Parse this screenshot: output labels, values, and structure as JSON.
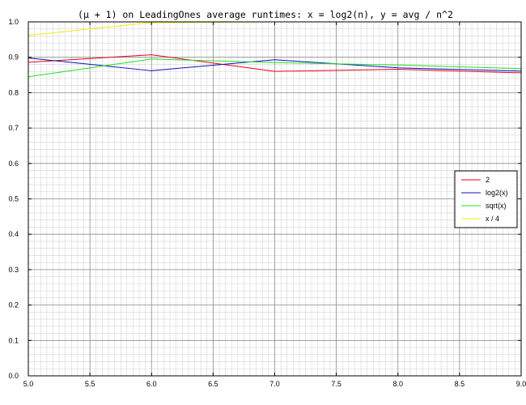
{
  "chart_data": {
    "type": "line",
    "title": "(μ + 1) on LeadingOnes average runtimes: x = log2(n), y = avg / n^2",
    "xlabel": "",
    "ylabel": "",
    "xlim": [
      5.0,
      9.0
    ],
    "ylim": [
      0.0,
      1.0
    ],
    "xticks": [
      "5.0",
      "5.5",
      "6.0",
      "6.5",
      "7.0",
      "7.5",
      "8.0",
      "8.5",
      "9.0"
    ],
    "yticks": [
      "0.0",
      "0.1",
      "0.2",
      "0.3",
      "0.4",
      "0.5",
      "0.6",
      "0.7",
      "0.8",
      "0.9",
      "1.0"
    ],
    "grid": true,
    "minor_grid": true,
    "legend_position": "right",
    "x": [
      5,
      6,
      7,
      8,
      9
    ],
    "series": [
      {
        "name": "2",
        "color": "#e8001c",
        "values": [
          0.886,
          0.907,
          0.86,
          0.866,
          0.856
        ]
      },
      {
        "name": "log2(x)",
        "color": "#1010b8",
        "values": [
          0.898,
          0.862,
          0.893,
          0.87,
          0.861
        ]
      },
      {
        "name": "sqrt(x)",
        "color": "#22e022",
        "values": [
          0.845,
          0.895,
          0.885,
          0.878,
          0.868
        ]
      },
      {
        "name": "x / 4",
        "color": "#f0f000",
        "values": [
          0.962,
          0.998,
          1.0,
          1.0,
          1.0
        ]
      }
    ]
  }
}
